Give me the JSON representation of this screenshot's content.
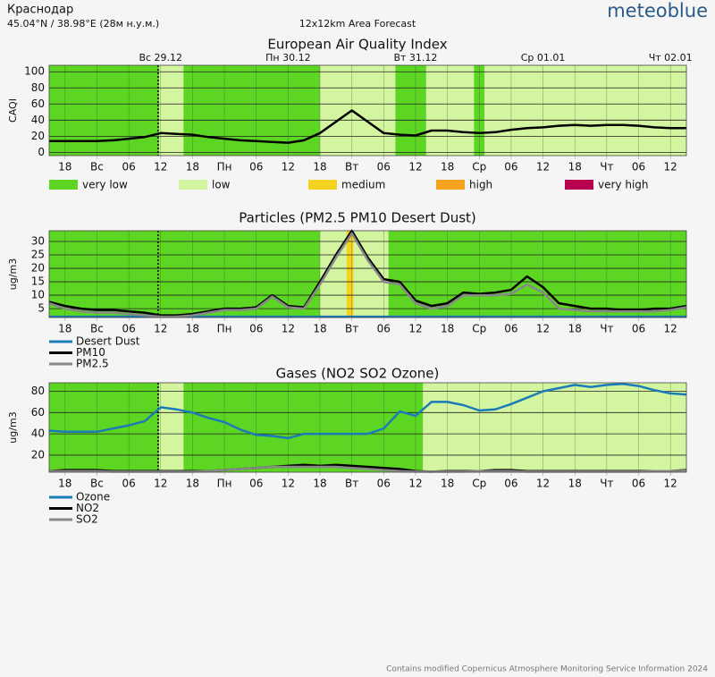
{
  "header": {
    "location": "Краснодар",
    "coords": "45.04°N / 38.98°E (28м н.у.м.)",
    "subtitle": "12x12km Area Forecast",
    "brand": "meteoblue"
  },
  "footer": "Contains modified Copernicus Atmosphere Monitoring Service Information 2024",
  "levels": [
    {
      "name": "very low",
      "color": "#5cd622"
    },
    {
      "name": "low",
      "color": "#d3f5a0"
    },
    {
      "name": "medium",
      "color": "#f5d21e"
    },
    {
      "name": "high",
      "color": "#f5a31e"
    },
    {
      "name": "very high",
      "color": "#b8004e"
    }
  ],
  "chart_data": [
    {
      "type": "line",
      "title": "European Air Quality Index",
      "y_label": "CAQI",
      "xlim": [
        15,
        135
      ],
      "ylim": [
        -4,
        108
      ],
      "yticks": [
        0,
        20,
        40,
        60,
        80,
        100
      ],
      "now": 35.5,
      "day_labels": [
        {
          "value": 36,
          "label": "Вс 29.12"
        },
        {
          "value": 60,
          "label": "Пн 30.12"
        },
        {
          "value": 84,
          "label": "Вт 31.12"
        },
        {
          "value": 108,
          "label": "Ср 01.01"
        },
        {
          "value": 132,
          "label": "Чт 02.01"
        }
      ],
      "xticks": [
        {
          "value": 18,
          "label": "18"
        },
        {
          "value": 24,
          "label": "Вс"
        },
        {
          "value": 30,
          "label": "06"
        },
        {
          "value": 36,
          "label": "12"
        },
        {
          "value": 42,
          "label": "18"
        },
        {
          "value": 48,
          "label": "Пн"
        },
        {
          "value": 54,
          "label": "06"
        },
        {
          "value": 60,
          "label": "12"
        },
        {
          "value": 66,
          "label": "18"
        },
        {
          "value": 72,
          "label": "Вт"
        },
        {
          "value": 78,
          "label": "06"
        },
        {
          "value": 84,
          "label": "12"
        },
        {
          "value": 90,
          "label": "18"
        },
        {
          "value": 96,
          "label": "Ср"
        },
        {
          "value": 102,
          "label": "06"
        },
        {
          "value": 108,
          "label": "12"
        },
        {
          "value": 114,
          "label": "18"
        },
        {
          "value": 120,
          "label": "Чт"
        },
        {
          "value": 126,
          "label": "06"
        },
        {
          "value": 132,
          "label": "12"
        }
      ],
      "bands": [
        {
          "start": 15,
          "end": 35.7,
          "level": 0
        },
        {
          "start": 35.7,
          "end": 40.3,
          "level": 1
        },
        {
          "start": 40.3,
          "end": 66,
          "level": 0
        },
        {
          "start": 66,
          "end": 80.2,
          "level": 1
        },
        {
          "start": 80.2,
          "end": 86,
          "level": 0
        },
        {
          "start": 86,
          "end": 95,
          "level": 1
        },
        {
          "start": 95,
          "end": 97,
          "level": 0
        },
        {
          "start": 97,
          "end": 135,
          "level": 1
        }
      ],
      "x": [
        15,
        18,
        21,
        24,
        27,
        30,
        33,
        36,
        39,
        42,
        45,
        48,
        51,
        54,
        57,
        60,
        63,
        66,
        69,
        72,
        75,
        78,
        81,
        84,
        87,
        90,
        93,
        96,
        99,
        102,
        105,
        108,
        111,
        114,
        117,
        120,
        123,
        126,
        129,
        132,
        135
      ],
      "color": "#000000",
      "values": [
        14,
        14,
        14,
        14,
        15,
        17,
        19,
        24,
        23,
        22,
        19,
        17,
        15,
        14,
        13,
        12,
        15,
        24,
        38,
        52,
        38,
        24,
        22,
        21,
        27,
        27,
        25,
        24,
        25,
        28,
        30,
        31,
        33,
        34,
        33,
        34,
        34,
        33,
        31,
        30,
        30
      ]
    },
    {
      "type": "line",
      "title": "Particles (PM2.5 PM10 Desert Dust)",
      "y_label": "ug/m3",
      "xlim": [
        15,
        135
      ],
      "ylim": [
        1.7,
        34
      ],
      "yticks": [
        5,
        10,
        15,
        20,
        25,
        30
      ],
      "now": 35.5,
      "xticks": [
        {
          "value": 18,
          "label": "18"
        },
        {
          "value": 24,
          "label": "Вс"
        },
        {
          "value": 30,
          "label": "06"
        },
        {
          "value": 36,
          "label": "12"
        },
        {
          "value": 42,
          "label": "18"
        },
        {
          "value": 48,
          "label": "Пн"
        },
        {
          "value": 54,
          "label": "06"
        },
        {
          "value": 60,
          "label": "12"
        },
        {
          "value": 66,
          "label": "18"
        },
        {
          "value": 72,
          "label": "Вт"
        },
        {
          "value": 78,
          "label": "06"
        },
        {
          "value": 84,
          "label": "12"
        },
        {
          "value": 90,
          "label": "18"
        },
        {
          "value": 96,
          "label": "Ср"
        },
        {
          "value": 102,
          "label": "06"
        },
        {
          "value": 108,
          "label": "12"
        },
        {
          "value": 114,
          "label": "18"
        },
        {
          "value": 120,
          "label": "Чт"
        },
        {
          "value": 126,
          "label": "06"
        },
        {
          "value": 132,
          "label": "12"
        }
      ],
      "bands": [
        {
          "start": 15,
          "end": 66,
          "level": 0
        },
        {
          "start": 66,
          "end": 71,
          "level": 1
        },
        {
          "start": 71,
          "end": 72.3,
          "level": 2
        },
        {
          "start": 72.3,
          "end": 78.9,
          "level": 1
        },
        {
          "start": 78.9,
          "end": 135,
          "level": 0
        }
      ],
      "x": [
        15,
        18,
        21,
        24,
        27,
        30,
        33,
        36,
        39,
        42,
        45,
        48,
        51,
        54,
        57,
        60,
        63,
        66,
        69,
        72,
        75,
        78,
        81,
        84,
        87,
        90,
        93,
        96,
        99,
        102,
        105,
        108,
        111,
        114,
        117,
        120,
        123,
        126,
        129,
        132,
        135
      ],
      "series": [
        {
          "name": "Desert Dust",
          "color": "#1b7bb8",
          "values": [
            2,
            2,
            2,
            2,
            2,
            2,
            2,
            2,
            2,
            2,
            2,
            2,
            2,
            2,
            2,
            2,
            2,
            2,
            2,
            2,
            2,
            2,
            2,
            2,
            2,
            2,
            2,
            2,
            2,
            2,
            2,
            2,
            2,
            2,
            2,
            2,
            2,
            2,
            2,
            2,
            2
          ]
        },
        {
          "name": "PM10",
          "color": "#000000",
          "values": [
            7.5,
            6,
            5,
            4.5,
            4.5,
            4,
            3.5,
            2.5,
            2.5,
            3,
            4,
            5,
            5,
            5.5,
            10,
            6,
            5.5,
            15,
            25,
            34,
            24,
            16,
            15,
            8,
            6,
            7,
            11,
            10.5,
            11,
            12,
            17,
            13,
            7,
            6,
            5,
            5,
            4.5,
            4.5,
            5,
            5,
            6
          ]
        },
        {
          "name": "PM2.5",
          "color": "#888888",
          "values": [
            7,
            5,
            4,
            3.5,
            3.5,
            3,
            2.5,
            2,
            2,
            2.5,
            3.5,
            4.5,
            4.5,
            5,
            9.5,
            5.5,
            5,
            14,
            24,
            33,
            23,
            15,
            14,
            7,
            5,
            6,
            10,
            10,
            10,
            10.5,
            14,
            11,
            5,
            4.5,
            4,
            4,
            4,
            4,
            4,
            4.5,
            5.5
          ]
        }
      ]
    },
    {
      "type": "line",
      "title": "Gases (NO2 SO2 Ozone)",
      "y_label": "ug/m3",
      "xlim": [
        15,
        135
      ],
      "ylim": [
        4,
        88
      ],
      "yticks": [
        20,
        40,
        60,
        80
      ],
      "now": 35.5,
      "xticks": [
        {
          "value": 18,
          "label": "18"
        },
        {
          "value": 24,
          "label": "Вс"
        },
        {
          "value": 30,
          "label": "06"
        },
        {
          "value": 36,
          "label": "12"
        },
        {
          "value": 42,
          "label": "18"
        },
        {
          "value": 48,
          "label": "Пн"
        },
        {
          "value": 54,
          "label": "06"
        },
        {
          "value": 60,
          "label": "12"
        },
        {
          "value": 66,
          "label": "18"
        },
        {
          "value": 72,
          "label": "Вт"
        },
        {
          "value": 78,
          "label": "06"
        },
        {
          "value": 84,
          "label": "12"
        },
        {
          "value": 90,
          "label": "18"
        },
        {
          "value": 96,
          "label": "Ср"
        },
        {
          "value": 102,
          "label": "06"
        },
        {
          "value": 108,
          "label": "12"
        },
        {
          "value": 114,
          "label": "18"
        },
        {
          "value": 120,
          "label": "Чт"
        },
        {
          "value": 126,
          "label": "06"
        },
        {
          "value": 132,
          "label": "12"
        }
      ],
      "bands": [
        {
          "start": 15,
          "end": 35.7,
          "level": 0
        },
        {
          "start": 35.7,
          "end": 40.3,
          "level": 1
        },
        {
          "start": 40.3,
          "end": 85.4,
          "level": 0
        },
        {
          "start": 85.4,
          "end": 135,
          "level": 1
        }
      ],
      "x": [
        15,
        18,
        21,
        24,
        27,
        30,
        33,
        36,
        39,
        42,
        45,
        48,
        51,
        54,
        57,
        60,
        63,
        66,
        69,
        72,
        75,
        78,
        81,
        84,
        87,
        90,
        93,
        96,
        99,
        102,
        105,
        108,
        111,
        114,
        117,
        120,
        123,
        126,
        129,
        132,
        135
      ],
      "series": [
        {
          "name": "Ozone",
          "color": "#1b7bb8",
          "values": [
            43,
            42,
            42,
            42,
            45,
            48,
            52,
            65,
            63,
            60,
            55,
            51,
            44,
            39,
            38,
            36,
            40,
            40,
            40,
            40,
            40,
            45,
            61,
            57,
            70,
            70,
            67,
            62,
            63,
            68,
            74,
            80,
            83,
            86,
            84,
            86,
            87,
            85,
            81,
            78,
            77
          ]
        },
        {
          "name": "NO2",
          "color": "#000000",
          "values": [
            5,
            6,
            6,
            6,
            5,
            5,
            5,
            5,
            5,
            5,
            5,
            6,
            7,
            8,
            9,
            10,
            11,
            10,
            11,
            10,
            9,
            8,
            7,
            5,
            4.5,
            5,
            5,
            5,
            6,
            6,
            5,
            5,
            5,
            5,
            5,
            5,
            5,
            5,
            5,
            5,
            6
          ]
        },
        {
          "name": "SO2",
          "color": "#888888",
          "values": [
            5,
            5,
            5,
            5,
            4.5,
            4.5,
            4.5,
            4.5,
            4.5,
            4.5,
            5,
            6,
            7,
            8,
            9,
            9,
            9,
            9,
            9,
            8,
            7,
            6,
            5,
            4.5,
            4.5,
            4.5,
            4.5,
            5,
            5,
            5,
            4.5,
            4.5,
            4.5,
            4.5,
            4.5,
            4.5,
            4.5,
            4.5,
            5,
            5,
            5.5
          ]
        }
      ]
    }
  ]
}
